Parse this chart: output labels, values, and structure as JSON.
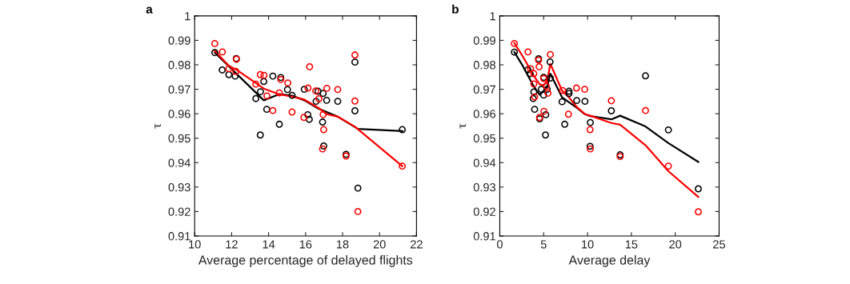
{
  "chart_data": [
    {
      "type": "scatter",
      "title": "a",
      "xlabel": "Average percentage of delayed flights",
      "ylabel": "τ",
      "xlim": [
        10,
        22
      ],
      "xticks": [
        10,
        12,
        14,
        16,
        18,
        20,
        22
      ],
      "ylim": [
        0.91,
        1
      ],
      "yticks": [
        0.91,
        0.92,
        0.93,
        0.94,
        0.95,
        0.96,
        0.97,
        0.98,
        0.99,
        1
      ],
      "grid": false,
      "legend": false,
      "series": [
        {
          "marker": "circle",
          "color": "#000000",
          "x": [
            11.09,
            11.49,
            11.85,
            12.25,
            12.19,
            13.31,
            13.56,
            13.74,
            13.55,
            13.9,
            14.23,
            14.66,
            14.58,
            15.02,
            15.27,
            15.93,
            16.12,
            16.2,
            16.67,
            16.57,
            16.95,
            17.14,
            16.92,
            16.98,
            17.74,
            18.19,
            18.67,
            18.67,
            18.83,
            21.23
          ],
          "values": [
            0.985,
            0.9779,
            0.976,
            0.9826,
            0.9754,
            0.9662,
            0.969,
            0.9732,
            0.9513,
            0.9618,
            0.9754,
            0.9748,
            0.9557,
            0.9699,
            0.9675,
            0.97,
            0.9596,
            0.9577,
            0.9692,
            0.9651,
            0.9683,
            0.9655,
            0.9566,
            0.9468,
            0.9651,
            0.9434,
            0.9811,
            0.9612,
            0.9296,
            0.9535
          ]
        },
        {
          "marker": "circle",
          "color": "#ff0000",
          "x": [
            11.09,
            11.5,
            11.85,
            12.23,
            12.26,
            13.31,
            13.55,
            13.75,
            13.91,
            14.23,
            14.58,
            14.66,
            15.04,
            15.27,
            15.91,
            16.13,
            16.22,
            16.55,
            16.72,
            16.95,
            16.98,
            16.92,
            17.15,
            17.74,
            18.19,
            18.67,
            18.67,
            18.83,
            21.23
          ],
          "values": [
            0.9887,
            0.9853,
            0.9784,
            0.9773,
            0.9823,
            0.9721,
            0.976,
            0.9757,
            0.9673,
            0.9613,
            0.9685,
            0.974,
            0.9726,
            0.9607,
            0.9585,
            0.9705,
            0.9792,
            0.9693,
            0.9661,
            0.9597,
            0.9535,
            0.9456,
            0.9704,
            0.9699,
            0.9427,
            0.984,
            0.9652,
            0.92,
            0.9386
          ]
        },
        {
          "type": "line",
          "marker": "none",
          "color": "#000000",
          "x": [
            11.09,
            13.74,
            14.58,
            15.27,
            15.93,
            16.67,
            17.74,
            18.83,
            21.23
          ],
          "values": [
            0.985,
            0.9655,
            0.968,
            0.9674,
            0.9655,
            0.9622,
            0.9588,
            0.9538,
            0.9529
          ]
        },
        {
          "type": "line",
          "marker": "none",
          "color": "#ff0000",
          "x": [
            11.09,
            11.85,
            12.26,
            13.74,
            14.58,
            15.27,
            15.93,
            16.67,
            17.15,
            17.74,
            18.67,
            21.23
          ],
          "values": [
            0.9857,
            0.9796,
            0.978,
            0.9703,
            0.9679,
            0.967,
            0.9658,
            0.9625,
            0.9598,
            0.9588,
            0.9547,
            0.9386
          ]
        }
      ]
    },
    {
      "type": "scatter",
      "title": "b",
      "xlabel": "Average delay",
      "ylabel": "τ",
      "xlim": [
        0,
        25
      ],
      "xticks": [
        0,
        5,
        10,
        15,
        20,
        25
      ],
      "ylim": [
        0.91,
        1
      ],
      "yticks": [
        0.91,
        0.92,
        0.93,
        0.94,
        0.95,
        0.96,
        0.97,
        0.98,
        0.99,
        1
      ],
      "grid": false,
      "legend": false,
      "series": [
        {
          "marker": "circle",
          "color": "#000000",
          "x": [
            1.66,
            3.21,
            3.45,
            3.88,
            3.81,
            3.97,
            4.42,
            4.54,
            4.73,
            5.0,
            5.0,
            5.24,
            5.21,
            5.4,
            5.73,
            5.76,
            7.1,
            7.4,
            7.89,
            7.89,
            8.77,
            9.71,
            10.32,
            10.29,
            12.72,
            13.72,
            16.61,
            19.22,
            22.63
          ],
          "values": [
            0.9852,
            0.978,
            0.9764,
            0.9689,
            0.9662,
            0.9618,
            0.9825,
            0.9579,
            0.97,
            0.9749,
            0.9676,
            0.9596,
            0.9513,
            0.97,
            0.9812,
            0.9746,
            0.9649,
            0.9557,
            0.9692,
            0.9683,
            0.9654,
            0.9651,
            0.9564,
            0.9467,
            0.9612,
            0.9432,
            0.9755,
            0.9534,
            0.9293
          ]
        },
        {
          "marker": "circle",
          "color": "#ff0000",
          "x": [
            1.66,
            3.21,
            3.51,
            3.88,
            3.88,
            3.97,
            4.42,
            4.48,
            4.54,
            5.0,
            5.03,
            5.3,
            5.49,
            5.76,
            7.16,
            7.83,
            8.74,
            9.68,
            10.29,
            10.32,
            12.72,
            13.72,
            16.61,
            19.22,
            22.63
          ],
          "values": [
            0.9887,
            0.9853,
            0.9784,
            0.9764,
            0.9722,
            0.9669,
            0.9819,
            0.9792,
            0.9585,
            0.9744,
            0.961,
            0.9713,
            0.9684,
            0.9842,
            0.9695,
            0.9598,
            0.9705,
            0.97,
            0.9535,
            0.9456,
            0.9653,
            0.9425,
            0.9613,
            0.9386,
            0.9199
          ]
        },
        {
          "type": "line",
          "marker": "none",
          "color": "#000000",
          "x": [
            1.66,
            2.66,
            3.88,
            4.54,
            5.0,
            5.4,
            5.76,
            7.1,
            7.89,
            8.77,
            9.71,
            10.32,
            12.72,
            13.72,
            16.61,
            19.22,
            22.63
          ],
          "values": [
            0.9852,
            0.9793,
            0.9711,
            0.9678,
            0.9694,
            0.971,
            0.9764,
            0.9667,
            0.9647,
            0.9625,
            0.9598,
            0.959,
            0.9577,
            0.9592,
            0.9548,
            0.948,
            0.9403
          ]
        },
        {
          "type": "line",
          "marker": "none",
          "color": "#ff0000",
          "x": [
            1.66,
            2.66,
            3.88,
            4.54,
            5.0,
            5.4,
            5.76,
            7.1,
            7.89,
            8.77,
            9.71,
            10.32,
            12.72,
            13.72,
            16.61,
            19.22,
            22.63
          ],
          "values": [
            0.9889,
            0.9832,
            0.9755,
            0.972,
            0.9716,
            0.9733,
            0.9804,
            0.9694,
            0.9667,
            0.9628,
            0.9598,
            0.9592,
            0.9562,
            0.9555,
            0.9471,
            0.9365,
            0.926
          ]
        }
      ]
    }
  ]
}
